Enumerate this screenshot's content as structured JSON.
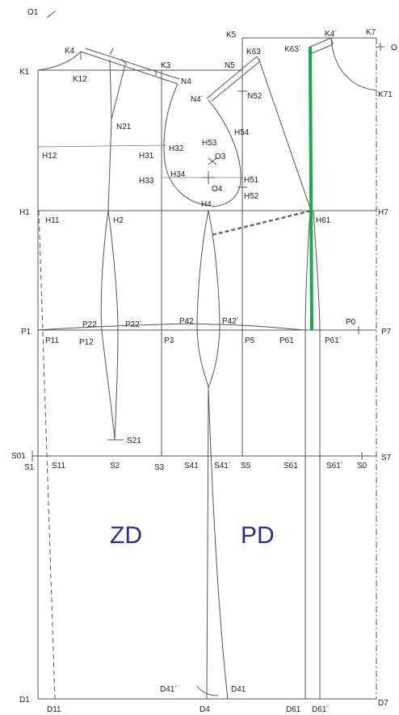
{
  "regions": {
    "back": "ZD",
    "front": "PD"
  },
  "points": {
    "O1": "O1",
    "O": "O",
    "K1": "K1",
    "K4": "K4",
    "K12": "K12",
    "K3": "K3",
    "K5": "K5",
    "K63": "K63",
    "K63p": "K63´",
    "K4p": "K4´",
    "K7": "K7",
    "K71": "K71",
    "N4": "N4",
    "N5": "N5",
    "N4p": "N4´",
    "N52": "N52",
    "N21": "N21",
    "H53": "H53",
    "H54": "H54",
    "O3": "O3",
    "H12": "H12",
    "H31": "H31",
    "H32": "H32",
    "H33": "H33",
    "H34": "H34",
    "O4": "O4",
    "H51": "H51",
    "H52": "H52",
    "H1": "H1",
    "H11": "H11",
    "H2": "H2",
    "H4": "H4",
    "H61": "H61",
    "H7": "H7",
    "P1": "P1",
    "P11": "P11",
    "P12": "P12",
    "P22": "P22",
    "P22p": "P22´",
    "P3": "P3",
    "P42": "P42",
    "P42p": "P42´",
    "P5": "P5",
    "P61": "P61",
    "P61p": "P61´",
    "P0": "P0",
    "P7": "P7",
    "S21": "S21",
    "S01": "S01",
    "S1": "S1",
    "S11": "S11",
    "S2": "S2",
    "S3": "S3",
    "S41": "S41",
    "S41p": "S41´",
    "S5": "S5",
    "S61": "S61",
    "S61p": "S61´",
    "S0": "S0",
    "S7": "S7",
    "D1": "D1",
    "D11": "D11",
    "D41p": "D41´",
    "D41": "D41",
    "D4": "D4",
    "D61": "D61",
    "D61p": "D61´",
    "D7": "D7"
  },
  "colors": {
    "line": "#555555",
    "label": "#222222",
    "region_text": "#2b2e8f",
    "highlight": "#1aa84a"
  }
}
